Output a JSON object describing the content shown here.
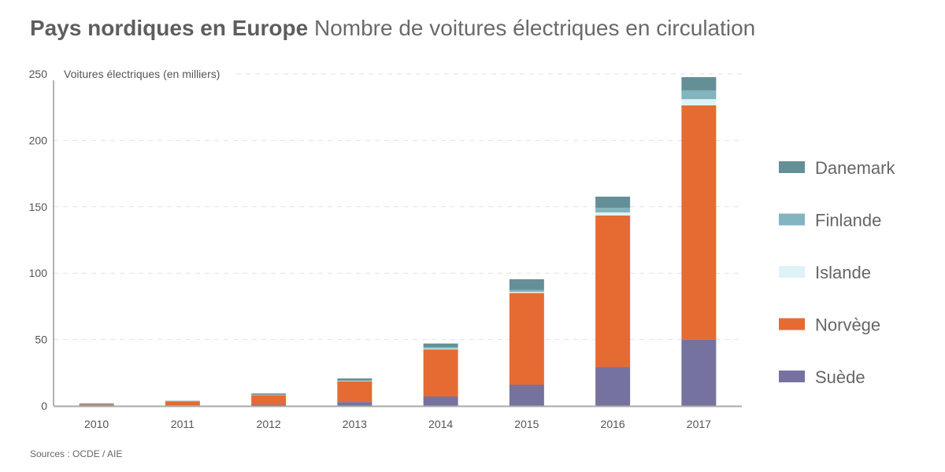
{
  "header": {
    "title_bold": "Pays nordiques en Europe",
    "title_rest": "Nombre de voitures électriques en circulation"
  },
  "footer": {
    "source": "Sources : OCDE / AIE"
  },
  "chart_data": {
    "type": "bar",
    "stacked": true,
    "title": "Pays nordiques en Europe Nombre de voitures électriques en circulation",
    "ylabel": "Voitures électriques (en milliers)",
    "xlabel": "",
    "ylim": [
      0,
      250
    ],
    "yticks": [
      "0",
      "50",
      "100",
      "150",
      "200",
      "250"
    ],
    "ytick_values": [
      0,
      50,
      100,
      150,
      200,
      250
    ],
    "grid": true,
    "legend_position": "right",
    "categories": [
      "2010",
      "2011",
      "2012",
      "2013",
      "2014",
      "2015",
      "2016",
      "2017"
    ],
    "series": [
      {
        "name": "Suède",
        "color": "#7672a0",
        "values": [
          0.2,
          0.5,
          0.9,
          2.9,
          7.1,
          16.0,
          29.3,
          49.8
        ]
      },
      {
        "name": "Norvège",
        "color": "#e66b33",
        "values": [
          0.8,
          2.5,
          7.2,
          15.6,
          35.5,
          69.0,
          114.1,
          176.5
        ]
      },
      {
        "name": "Islande",
        "color": "#def3f6",
        "values": [
          0.0,
          0.0,
          0.1,
          0.2,
          0.6,
          0.9,
          2.3,
          4.7
        ]
      },
      {
        "name": "Finlande",
        "color": "#82b5c0",
        "values": [
          0.1,
          0.2,
          0.3,
          0.5,
          1.2,
          1.5,
          3.6,
          6.6
        ]
      },
      {
        "name": "Danemark",
        "color": "#658f96",
        "values": [
          0.8,
          0.6,
          0.9,
          1.5,
          2.6,
          8.0,
          8.3,
          10.0
        ]
      }
    ],
    "legend_order": [
      "Danemark",
      "Finlande",
      "Islande",
      "Norvège",
      "Suède"
    ]
  }
}
